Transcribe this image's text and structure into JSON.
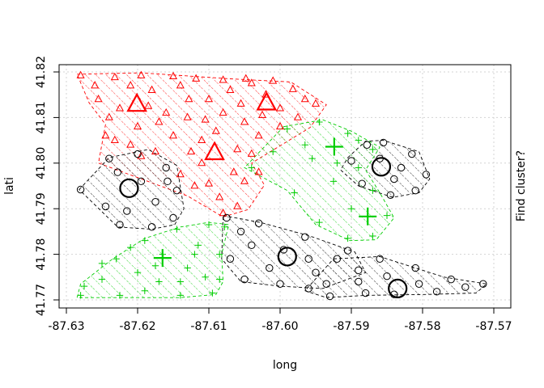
{
  "chart_data": {
    "type": "scatter",
    "title": "",
    "xlabel": "long",
    "ylabel": "lati",
    "right_label": "Find cluster?",
    "xlim": [
      -87.63,
      -87.57
    ],
    "ylim": [
      41.77,
      41.82
    ],
    "x_ticks": [
      "-87.63",
      "-87.62",
      "-87.61",
      "-87.60",
      "-87.59",
      "-87.58",
      "-87.57"
    ],
    "y_ticks": [
      "41.77",
      "41.78",
      "41.79",
      "41.80",
      "41.81",
      "41.82"
    ],
    "grid": true,
    "clusters": [
      {
        "marker": "triangle",
        "color": "#ff0000",
        "center_points": [
          [
            -87.6092,
            41.8022
          ],
          [
            -87.6201,
            41.8128
          ],
          [
            -87.6019,
            41.8131
          ]
        ],
        "hull": [
          [
            -87.6285,
            41.8195
          ],
          [
            -87.6195,
            41.8198
          ],
          [
            -87.607,
            41.8185
          ],
          [
            -87.5985,
            41.8178
          ],
          [
            -87.5935,
            41.8128
          ],
          [
            -87.5958,
            41.8078
          ],
          [
            -87.604,
            41.8
          ],
          [
            -87.6022,
            41.7952
          ],
          [
            -87.6045,
            41.7898
          ],
          [
            -87.608,
            41.7882
          ],
          [
            -87.613,
            41.7928
          ],
          [
            -87.6255,
            41.8
          ],
          [
            -87.6245,
            41.8085
          ],
          [
            -87.6268,
            41.8132
          ]
        ],
        "points": [
          [
            -87.628,
            41.8192
          ],
          [
            -87.6232,
            41.8188
          ],
          [
            -87.6195,
            41.8192
          ],
          [
            -87.615,
            41.819
          ],
          [
            -87.6118,
            41.8185
          ],
          [
            -87.608,
            41.8182
          ],
          [
            -87.604,
            41.8175
          ],
          [
            -87.601,
            41.818
          ],
          [
            -87.5982,
            41.8162
          ],
          [
            -87.595,
            41.813
          ],
          [
            -87.6255,
            41.814
          ],
          [
            -87.624,
            41.81
          ],
          [
            -87.6245,
            41.806
          ],
          [
            -87.621,
            41.804
          ],
          [
            -87.6175,
            41.8025
          ],
          [
            -87.615,
            41.806
          ],
          [
            -87.613,
            41.81
          ],
          [
            -87.61,
            41.814
          ],
          [
            -87.608,
            41.811
          ],
          [
            -87.605,
            41.809
          ],
          [
            -87.603,
            41.806
          ],
          [
            -87.606,
            41.803
          ],
          [
            -87.611,
            41.8
          ],
          [
            -87.614,
            41.7975
          ],
          [
            -87.612,
            41.795
          ],
          [
            -87.6085,
            41.7925
          ],
          [
            -87.606,
            41.7905
          ],
          [
            -87.605,
            41.796
          ],
          [
            -87.603,
            41.798
          ],
          [
            -87.6,
            41.808
          ],
          [
            -87.5975,
            41.81
          ],
          [
            -87.5965,
            41.814
          ],
          [
            -87.618,
            41.816
          ],
          [
            -87.621,
            41.817
          ],
          [
            -87.616,
            41.811
          ],
          [
            -87.62,
            41.808
          ],
          [
            -87.617,
            41.809
          ],
          [
            -87.611,
            41.805
          ],
          [
            -87.607,
            41.816
          ],
          [
            -87.6055,
            41.813
          ],
          [
            -87.6025,
            41.8105
          ],
          [
            -87.6195,
            41.8015
          ],
          [
            -87.6232,
            41.805
          ],
          [
            -87.614,
            41.817
          ],
          [
            -87.609,
            41.807
          ],
          [
            -87.602,
            41.815
          ],
          [
            -87.6065,
            41.798
          ],
          [
            -87.61,
            41.7955
          ],
          [
            -87.6125,
            41.8025
          ],
          [
            -87.6185,
            41.8125
          ],
          [
            -87.6225,
            41.812
          ],
          [
            -87.6,
            41.812
          ],
          [
            -87.604,
            41.802
          ],
          [
            -87.608,
            41.789
          ],
          [
            -87.6128,
            41.814
          ],
          [
            -87.6048,
            41.8185
          ],
          [
            -87.626,
            41.817
          ],
          [
            -87.6105,
            41.8095
          ]
        ]
      },
      {
        "marker": "circle",
        "color": "#000000",
        "center_points": [
          [
            -87.6212,
            41.7945
          ],
          [
            -87.5858,
            41.7992
          ],
          [
            -87.599,
            41.7795
          ],
          [
            -87.5835,
            41.7725
          ]
        ],
        "hull": [
          [
            -87.6282,
            41.7942
          ],
          [
            -87.624,
            41.8012
          ],
          [
            -87.6185,
            41.803
          ],
          [
            -87.6145,
            41.7995
          ],
          [
            -87.6135,
            41.79
          ],
          [
            -87.6148,
            41.7865
          ],
          [
            -87.618,
            41.7855
          ],
          [
            -87.6228,
            41.786
          ]
        ],
        "hull2": [
          [
            -87.5905,
            41.8012
          ],
          [
            -87.588,
            41.8048
          ],
          [
            -87.5855,
            41.805
          ],
          [
            -87.5805,
            41.8025
          ],
          [
            -87.579,
            41.7965
          ],
          [
            -87.5805,
            41.7935
          ],
          [
            -87.5842,
            41.7925
          ],
          [
            -87.589,
            41.795
          ],
          [
            -87.5915,
            41.7985
          ]
        ],
        "hull3": [
          [
            -87.608,
            41.7885
          ],
          [
            -87.6028,
            41.787
          ],
          [
            -87.5958,
            41.784
          ],
          [
            -87.5895,
            41.7805
          ],
          [
            -87.588,
            41.776
          ],
          [
            -87.594,
            41.7725
          ],
          [
            -87.6,
            41.773
          ],
          [
            -87.6055,
            41.774
          ],
          [
            -87.6082,
            41.779
          ]
        ],
        "hull4": [
          [
            -87.5925,
            41.779
          ],
          [
            -87.586,
            41.7795
          ],
          [
            -87.577,
            41.775
          ],
          [
            -87.571,
            41.7735
          ],
          [
            -87.5725,
            41.7715
          ],
          [
            -87.579,
            41.7712
          ],
          [
            -87.588,
            41.771
          ],
          [
            -87.5935,
            41.7705
          ],
          [
            -87.5965,
            41.772
          ]
        ],
        "points": [
          [
            -87.628,
            41.7942
          ],
          [
            -87.624,
            41.801
          ],
          [
            -87.62,
            41.802
          ],
          [
            -87.616,
            41.799
          ],
          [
            -87.6145,
            41.794
          ],
          [
            -87.615,
            41.788
          ],
          [
            -87.618,
            41.786
          ],
          [
            -87.6225,
            41.7865
          ],
          [
            -87.6245,
            41.7905
          ],
          [
            -87.6195,
            41.796
          ],
          [
            -87.6175,
            41.7915
          ],
          [
            -87.6228,
            41.798
          ],
          [
            -87.6158,
            41.796
          ],
          [
            -87.6215,
            41.7895
          ],
          [
            -87.59,
            41.8005
          ],
          [
            -87.5878,
            41.804
          ],
          [
            -87.5855,
            41.8045
          ],
          [
            -87.5815,
            41.802
          ],
          [
            -87.5795,
            41.7975
          ],
          [
            -87.581,
            41.794
          ],
          [
            -87.5845,
            41.793
          ],
          [
            -87.5885,
            41.7955
          ],
          [
            -87.586,
            41.801
          ],
          [
            -87.583,
            41.799
          ],
          [
            -87.584,
            41.7965
          ],
          [
            -87.6075,
            41.788
          ],
          [
            -87.603,
            41.7868
          ],
          [
            -87.5965,
            41.7838
          ],
          [
            -87.5905,
            41.7808
          ],
          [
            -87.589,
            41.7765
          ],
          [
            -87.5935,
            41.7735
          ],
          [
            -87.6,
            41.7735
          ],
          [
            -87.605,
            41.7745
          ],
          [
            -87.607,
            41.779
          ],
          [
            -87.604,
            41.782
          ],
          [
            -87.5995,
            41.781
          ],
          [
            -87.596,
            41.779
          ],
          [
            -87.6015,
            41.777
          ],
          [
            -87.595,
            41.776
          ],
          [
            -87.6055,
            41.785
          ],
          [
            -87.592,
            41.779
          ],
          [
            -87.586,
            41.779
          ],
          [
            -87.581,
            41.777
          ],
          [
            -87.576,
            41.7745
          ],
          [
            -87.5715,
            41.7735
          ],
          [
            -87.578,
            41.7718
          ],
          [
            -87.584,
            41.7712
          ],
          [
            -87.588,
            41.7715
          ],
          [
            -87.593,
            41.7708
          ],
          [
            -87.589,
            41.774
          ],
          [
            -87.585,
            41.7752
          ],
          [
            -87.5805,
            41.7735
          ],
          [
            -87.574,
            41.7728
          ],
          [
            -87.596,
            41.7725
          ]
        ]
      },
      {
        "marker": "plus",
        "color": "#00cd00",
        "center_points": [
          [
            -87.5924,
            41.8036
          ],
          [
            -87.5877,
            41.7883
          ],
          [
            -87.6165,
            41.7792
          ]
        ],
        "hull": [
          [
            -87.5995,
            41.808
          ],
          [
            -87.594,
            41.8095
          ],
          [
            -87.59,
            41.807
          ],
          [
            -87.586,
            41.8035
          ],
          [
            -87.588,
            41.7985
          ],
          [
            -87.586,
            41.7935
          ],
          [
            -87.584,
            41.788
          ],
          [
            -87.5865,
            41.7832
          ],
          [
            -87.5902,
            41.783
          ],
          [
            -87.595,
            41.7865
          ],
          [
            -87.599,
            41.794
          ],
          [
            -87.605,
            41.799
          ]
        ],
        "hull2": [
          [
            -87.6285,
            41.7705
          ],
          [
            -87.628,
            41.7735
          ],
          [
            -87.6235,
            41.779
          ],
          [
            -87.619,
            41.7835
          ],
          [
            -87.614,
            41.786
          ],
          [
            -87.61,
            41.787
          ],
          [
            -87.6072,
            41.7865
          ],
          [
            -87.6082,
            41.78
          ],
          [
            -87.608,
            41.774
          ],
          [
            -87.609,
            41.7712
          ],
          [
            -87.614,
            41.7705
          ],
          [
            -87.623,
            41.7705
          ]
        ],
        "points": [
          [
            -87.599,
            41.8075
          ],
          [
            -87.5945,
            41.809
          ],
          [
            -87.5905,
            41.8065
          ],
          [
            -87.587,
            41.803
          ],
          [
            -87.589,
            41.799
          ],
          [
            -87.587,
            41.794
          ],
          [
            -87.585,
            41.7885
          ],
          [
            -87.587,
            41.784
          ],
          [
            -87.5905,
            41.7835
          ],
          [
            -87.5945,
            41.787
          ],
          [
            -87.598,
            41.7935
          ],
          [
            -87.604,
            41.799
          ],
          [
            -87.5965,
            41.804
          ],
          [
            -87.592,
            41.8
          ],
          [
            -87.59,
            41.79
          ],
          [
            -87.5925,
            41.796
          ],
          [
            -87.5955,
            41.801
          ],
          [
            -87.601,
            41.8025
          ],
          [
            -87.589,
            41.805
          ],
          [
            -87.628,
            41.771
          ],
          [
            -87.6275,
            41.773
          ],
          [
            -87.623,
            41.779
          ],
          [
            -87.619,
            41.783
          ],
          [
            -87.6145,
            41.7855
          ],
          [
            -87.61,
            41.7865
          ],
          [
            -87.6078,
            41.786
          ],
          [
            -87.6085,
            41.78
          ],
          [
            -87.6085,
            41.7745
          ],
          [
            -87.6095,
            41.7715
          ],
          [
            -87.614,
            41.771
          ],
          [
            -87.6225,
            41.771
          ],
          [
            -87.625,
            41.7745
          ],
          [
            -87.62,
            41.776
          ],
          [
            -87.617,
            41.774
          ],
          [
            -87.613,
            41.777
          ],
          [
            -87.6115,
            41.782
          ],
          [
            -87.6165,
            41.78
          ],
          [
            -87.621,
            41.7815
          ],
          [
            -87.614,
            41.774
          ],
          [
            -87.6105,
            41.775
          ],
          [
            -87.619,
            41.772
          ],
          [
            -87.625,
            41.778
          ],
          [
            -87.612,
            41.78
          ],
          [
            -87.6175,
            41.7775
          ]
        ]
      }
    ]
  }
}
